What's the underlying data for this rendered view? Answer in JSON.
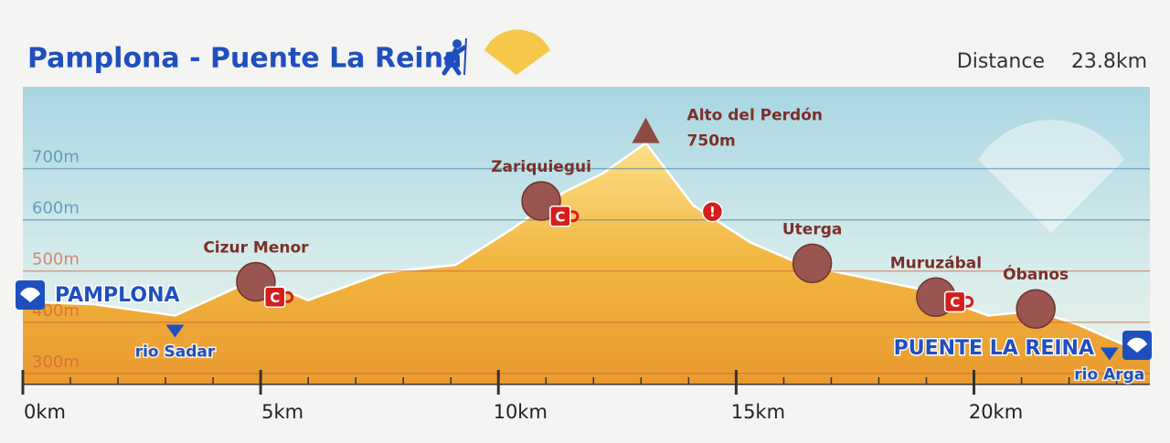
{
  "chart_data": {
    "type": "area",
    "title": "Pamplona - Puente La Reina",
    "distance_label": "Distance",
    "distance_value": "23.8km",
    "x": [
      0,
      1.5,
      3.2,
      4.9,
      6,
      7.6,
      9.1,
      10.3,
      11.4,
      12.2,
      13.1,
      14.1,
      15.3,
      16.4,
      17.8,
      18.75,
      19.5,
      20.3,
      21.3,
      22.2,
      23.3,
      23.7
    ],
    "values": [
      440,
      435,
      413,
      485,
      443,
      497,
      512,
      583,
      655,
      691,
      750,
      628,
      556,
      512,
      485,
      467,
      440,
      413,
      422,
      395,
      350,
      341
    ],
    "color": "#f2b53f",
    "xlim": [
      0,
      23.7
    ],
    "ylim": [
      280,
      860
    ],
    "xticks": [
      {
        "value": 0,
        "label": "0km"
      },
      {
        "value": 5,
        "label": "5km"
      },
      {
        "value": 10,
        "label": "10km"
      },
      {
        "value": 15,
        "label": "15km"
      },
      {
        "value": 20,
        "label": "20km"
      }
    ],
    "yticks": [
      {
        "value": 300,
        "label": "300m"
      },
      {
        "value": 400,
        "label": "400m"
      },
      {
        "value": 500,
        "label": "500m"
      },
      {
        "value": 600,
        "label": "600m"
      },
      {
        "value": 700,
        "label": "700m"
      }
    ],
    "grid": true,
    "start_label": "PAMPLONA",
    "end_label": "PUENTE LA REINA",
    "places": [
      {
        "label": "Cizur Menor",
        "x": 4.9,
        "y": 479
      },
      {
        "label": "Zariquiegui",
        "x": 10.9,
        "y": 637
      },
      {
        "label": "Uterga",
        "x": 16.6,
        "y": 515
      },
      {
        "label": "Muruzábal",
        "x": 19.2,
        "y": 449
      },
      {
        "label": "Óbanos",
        "x": 21.3,
        "y": 426
      }
    ],
    "peak": {
      "label": "Alto del Perdón",
      "value_label": "750m",
      "x": 13.1,
      "y": 750
    },
    "rivers": [
      {
        "label": "rio Sadar",
        "x": 3.2
      },
      {
        "label": "rio Arga",
        "x": 22.85
      }
    ],
    "cafe_symbol": "C",
    "cafes": [
      {
        "x": 5.3,
        "y": 449
      },
      {
        "x": 11.3,
        "y": 607
      },
      {
        "x": 19.6,
        "y": 440
      }
    ],
    "warning_symbol": "!",
    "warnings": [
      {
        "x": 14.5,
        "y": 616
      }
    ]
  }
}
